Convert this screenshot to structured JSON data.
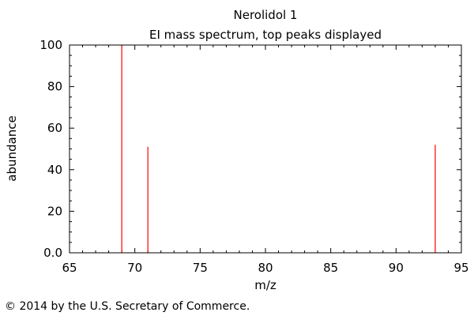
{
  "chart_data": {
    "type": "bar",
    "title": "Nerolidol 1",
    "subtitle": "EI mass spectrum, top peaks displayed",
    "xlabel": "m/z",
    "ylabel": "abundance",
    "xlim": [
      65,
      95
    ],
    "ylim": [
      0,
      100
    ],
    "xticks": [
      65,
      70,
      75,
      80,
      85,
      90,
      95
    ],
    "yticks": [
      "0.0",
      "20",
      "40",
      "60",
      "80",
      "100"
    ],
    "peaks": [
      {
        "mz": 69,
        "abundance": 100
      },
      {
        "mz": 71,
        "abundance": 51
      },
      {
        "mz": 93,
        "abundance": 52
      }
    ],
    "peak_color": "#ff0000",
    "grid": false
  },
  "footer": {
    "copyright": "© 2014 by the U.S. Secretary of Commerce."
  }
}
